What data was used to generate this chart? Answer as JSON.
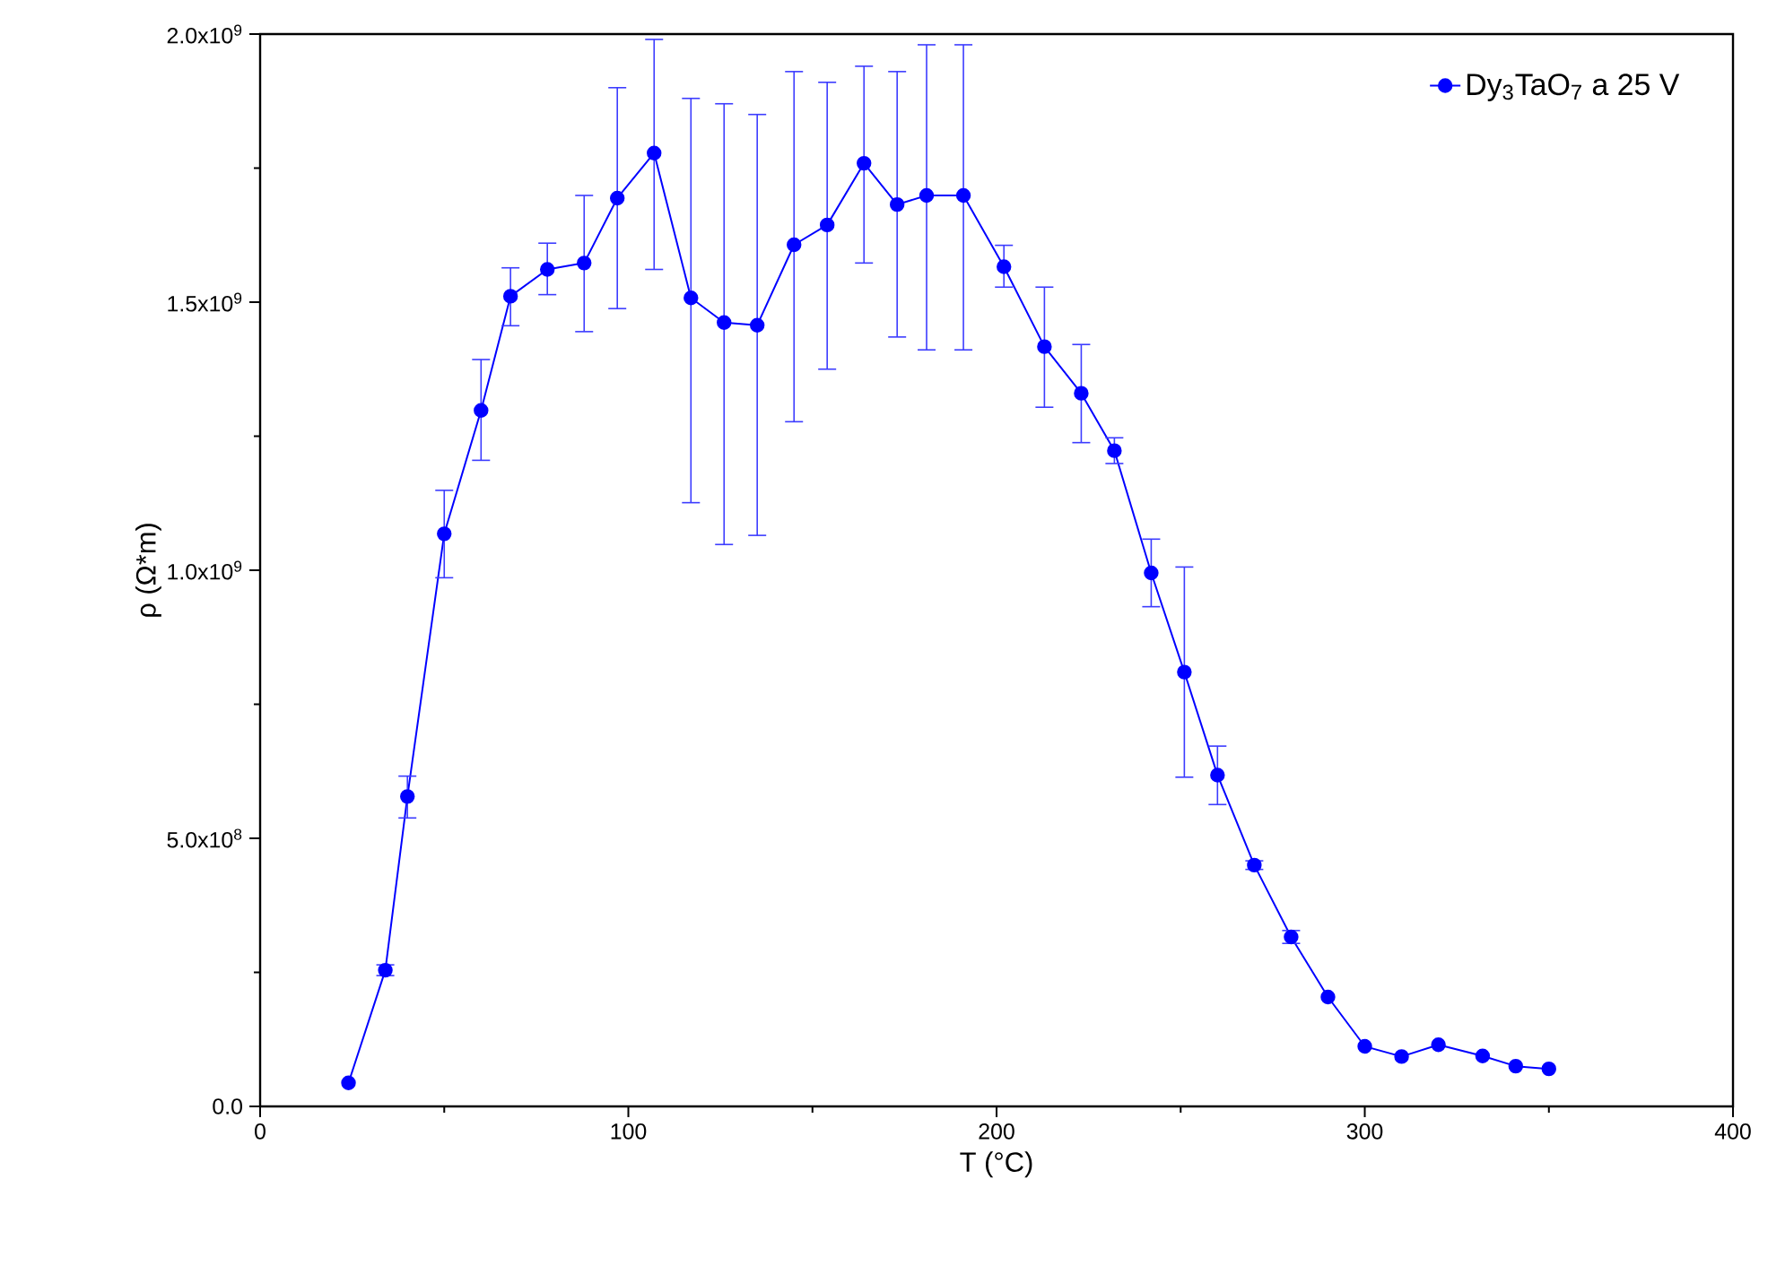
{
  "chart_data": {
    "type": "line",
    "xlabel": "T (°C)",
    "ylabel": "ρ (Ω*m)",
    "xlim": [
      0,
      400
    ],
    "xticks": [
      0,
      100,
      200,
      300,
      400
    ],
    "ylim": [
      0,
      2000000000
    ],
    "yticks": [
      {
        "value": 0,
        "label": "0.0"
      },
      {
        "value": 500000000,
        "label": "5.0x10$^{8}$"
      },
      {
        "value": 1000000000,
        "label": "1.0x10$^{9}$"
      },
      {
        "value": 1500000000,
        "label": "1.5x10$^{9}$"
      },
      {
        "value": 2000000000,
        "label": "2.0x10$^{9}$"
      }
    ],
    "grid": false,
    "legend": "top right",
    "marker": "circle",
    "line_style": "solid",
    "series": [
      {
        "name": "Dy$_{3}$TaO$_{7}$ a 25 V",
        "color": "#0000ff",
        "x": [
          24,
          34,
          40,
          50,
          60,
          68,
          78,
          88,
          97,
          107,
          117,
          126,
          135,
          145,
          154,
          164,
          173,
          181,
          191,
          202,
          213,
          223,
          232,
          242,
          251,
          260,
          270,
          280,
          290,
          300,
          310,
          320,
          332,
          341,
          350
        ],
        "values": [
          44000000,
          254000000,
          578000000,
          1068000000,
          1298000000,
          1511000000,
          1561000000,
          1573000000,
          1694000000,
          1778000000,
          1508000000,
          1462000000,
          1457000000,
          1607000000,
          1644000000,
          1759000000,
          1682000000,
          1699000000,
          1699000000,
          1566000000,
          1417000000,
          1330000000,
          1223000000,
          995000000,
          810000000,
          618000000,
          450000000,
          316000000,
          204000000,
          112000000,
          93000000,
          115000000,
          94000000,
          75000000,
          70000000
        ],
        "errors": [
          null,
          10000000,
          [
            538000000,
            616000000
          ],
          [
            986000000,
            1149000000
          ],
          [
            1205000000,
            1393000000
          ],
          [
            1456000000,
            1564000000
          ],
          [
            1514000000,
            1610000000
          ],
          [
            1445000000,
            1699000000
          ],
          [
            1488000000,
            1900000000
          ],
          [
            1561000000,
            1990000000
          ],
          [
            1126000000,
            1880000000
          ],
          [
            1048000000,
            1870000000
          ],
          [
            1065000000,
            1850000000
          ],
          [
            1277000000,
            1930000000
          ],
          [
            1375000000,
            1910000000
          ],
          [
            1573000000,
            1940000000
          ],
          [
            1435000000,
            1930000000
          ],
          [
            1411000000,
            1980000000
          ],
          [
            1411000000,
            1980000000
          ],
          [
            1528000000,
            1606000000
          ],
          [
            1304000000,
            1528000000
          ],
          [
            1238000000,
            1421000000
          ],
          [
            1199000000,
            1247000000
          ],
          [
            932000000,
            1058000000
          ],
          [
            614000000,
            1006000000
          ],
          [
            563000000,
            672000000
          ],
          8000000,
          12000000,
          null,
          null,
          null,
          null,
          null,
          null,
          null
        ]
      }
    ]
  }
}
